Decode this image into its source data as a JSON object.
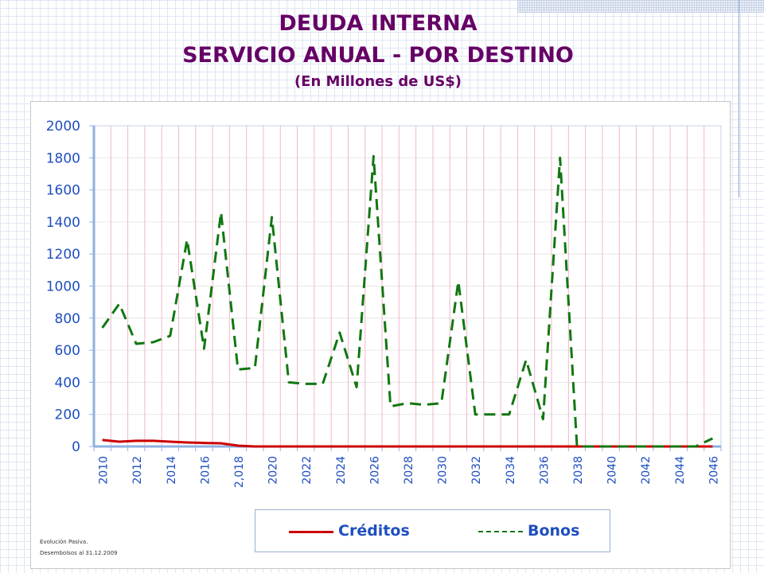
{
  "header": {
    "title_line1": "DEUDA INTERNA",
    "title_line2": "SERVICIO ANUAL - POR DESTINO",
    "subtitle": "(En Millones de US$)"
  },
  "footnotes": {
    "line1": "Evolución Pasiva.",
    "line2": "Desembolsos al 31.12.2009"
  },
  "colors": {
    "title": "#660066",
    "axis_text": "#1f4fbf",
    "creditos": "#cc0000",
    "bonos": "#117711",
    "vertical_grid": "#f0b8cc",
    "horizontal_grid": "#e6e6e6"
  },
  "chart_data": {
    "type": "line",
    "title": "",
    "xlabel": "",
    "ylabel": "",
    "ylim": [
      0,
      2000
    ],
    "yticks": [
      0,
      200,
      400,
      600,
      800,
      1000,
      1200,
      1400,
      1600,
      1800,
      2000
    ],
    "x": [
      2010,
      2011,
      2012,
      2013,
      2014,
      2015,
      2016,
      2017,
      2018,
      2019,
      2020,
      2021,
      2022,
      2023,
      2024,
      2025,
      2026,
      2027,
      2028,
      2029,
      2030,
      2031,
      2032,
      2033,
      2034,
      2035,
      2036,
      2037,
      2038,
      2039,
      2040,
      2041,
      2042,
      2043,
      2044,
      2045,
      2046
    ],
    "xtick_labels": [
      "2010",
      "2012",
      "2014",
      "2016",
      "2,018",
      "2020",
      "2022",
      "2024",
      "2026",
      "2028",
      "2030",
      "2032",
      "2034",
      "2036",
      "2038",
      "2040",
      "2042",
      "2044",
      "2046"
    ],
    "grid": true,
    "legend_position": "bottom",
    "series": [
      {
        "name": "Créditos",
        "style": "solid",
        "values": [
          40,
          30,
          35,
          35,
          30,
          25,
          22,
          20,
          5,
          0,
          0,
          0,
          0,
          0,
          0,
          0,
          0,
          0,
          0,
          0,
          0,
          0,
          0,
          0,
          0,
          0,
          0,
          0,
          0,
          0,
          0,
          0,
          0,
          0,
          0,
          0,
          0
        ]
      },
      {
        "name": "Bonos",
        "style": "dashed",
        "values": [
          740,
          890,
          640,
          650,
          690,
          1290,
          610,
          1460,
          480,
          490,
          1430,
          400,
          390,
          390,
          710,
          370,
          1810,
          250,
          270,
          260,
          270,
          1030,
          200,
          200,
          200,
          540,
          170,
          1800,
          0,
          0,
          0,
          0,
          0,
          0,
          0,
          0,
          50
        ]
      }
    ]
  }
}
